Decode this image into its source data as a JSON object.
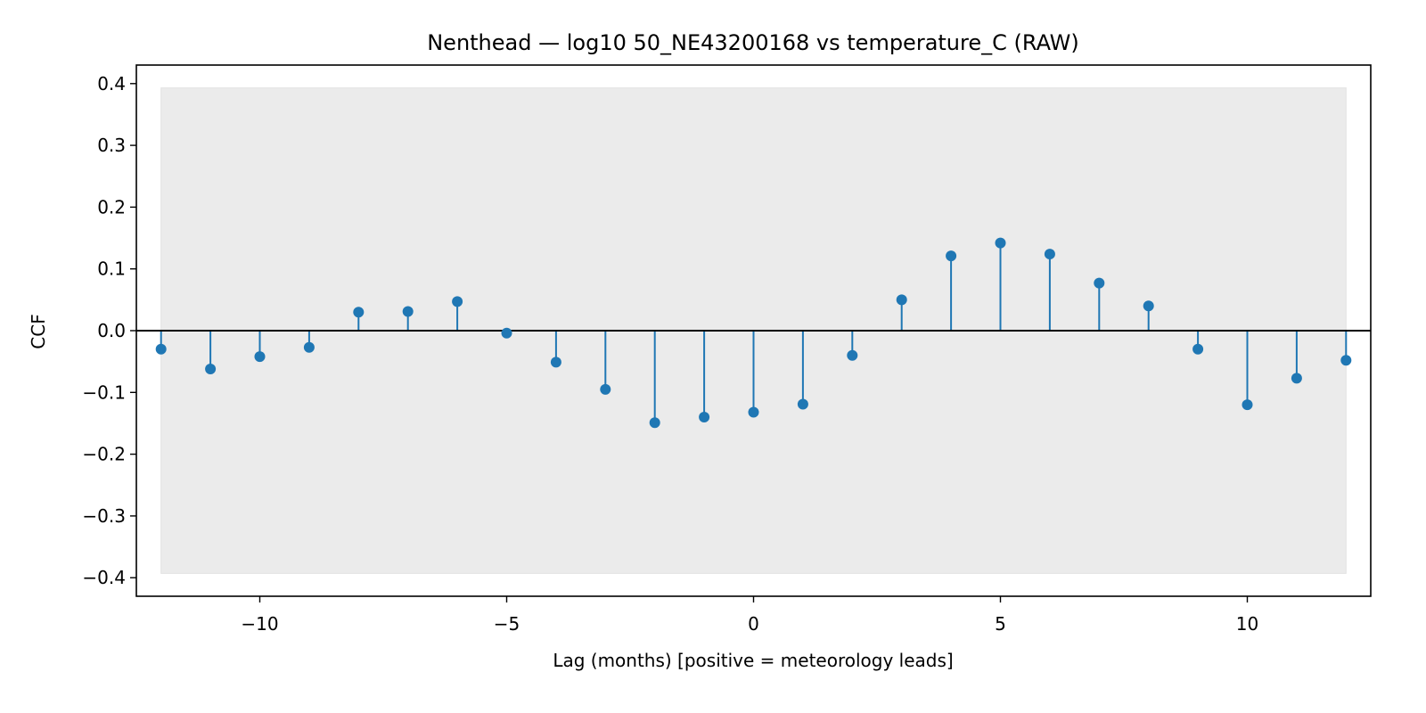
{
  "chart_data": {
    "type": "stem",
    "title": "Nenthead — log10 50_NE43200168 vs temperature_C (RAW)",
    "xlabel": "Lag (months)  [positive = meteorology leads]",
    "ylabel": "CCF",
    "xlim": [
      -12.5,
      12.5
    ],
    "ylim": [
      -0.43,
      0.43
    ],
    "x_ticks": [
      -10,
      -5,
      0,
      5,
      10
    ],
    "x_tick_labels": [
      "−10",
      "−5",
      "0",
      "5",
      "10"
    ],
    "y_ticks": [
      0.4,
      0.3,
      0.2,
      0.1,
      0.0,
      -0.1,
      -0.2,
      -0.3,
      -0.4
    ],
    "y_tick_labels": [
      "0.4",
      "0.3",
      "0.2",
      "0.1",
      "0.0",
      "−0.1",
      "−0.2",
      "−0.3",
      "−0.4"
    ],
    "confidence_band": {
      "lower": -0.393,
      "upper": 0.393,
      "x_range": [
        -12,
        12
      ],
      "color": "#ebebeb"
    },
    "baseline": 0.0,
    "grid": false,
    "series": [
      {
        "color": "#1f77b4",
        "x": [
          -12,
          -11,
          -10,
          -9,
          -8,
          -7,
          -6,
          -5,
          -4,
          -3,
          -2,
          -1,
          0,
          1,
          2,
          3,
          4,
          5,
          6,
          7,
          8,
          9,
          10,
          11,
          12
        ],
        "values": [
          -0.03,
          -0.062,
          -0.042,
          -0.027,
          0.03,
          0.031,
          0.047,
          -0.004,
          -0.051,
          -0.095,
          -0.149,
          -0.14,
          -0.132,
          -0.119,
          -0.04,
          0.05,
          0.121,
          0.142,
          0.124,
          0.077,
          0.04,
          -0.03,
          -0.12,
          -0.077,
          -0.048
        ]
      }
    ]
  }
}
